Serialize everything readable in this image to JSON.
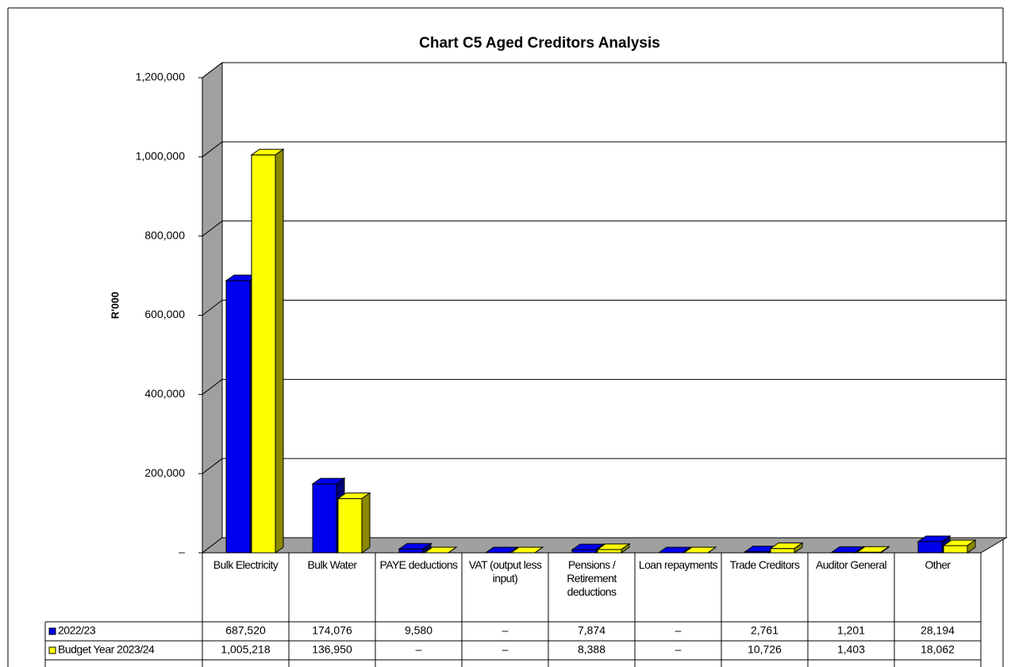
{
  "chart_data": {
    "type": "bar3d",
    "title": "Chart C5 Aged Creditors Analysis",
    "y_label": "R'000",
    "categories": [
      "Bulk Electricity",
      "Bulk Water",
      "PAYE deductions",
      "VAT (output less input)",
      "Pensions / Retirement deductions",
      "Loan repayments",
      "Trade Creditors",
      "Auditor General",
      "Other"
    ],
    "series": [
      {
        "name": "2022/23",
        "color": "#0000ee",
        "side": "#00007a",
        "values": [
          687520,
          174076,
          9580,
          0,
          7874,
          0,
          2761,
          1201,
          28194
        ],
        "value_labels": [
          "687,520",
          "174,076",
          "9,580",
          "–",
          "7,874",
          "–",
          "2,761",
          "1,201",
          "28,194"
        ]
      },
      {
        "name": "Budget Year 2023/24",
        "color": "#ffff00",
        "side": "#8a8a00",
        "values": [
          1005218,
          136950,
          0,
          0,
          8388,
          0,
          10726,
          1403,
          18062
        ],
        "value_labels": [
          "1,005,218",
          "136,950",
          "–",
          "–",
          "8,388",
          "–",
          "10,726",
          "1,403",
          "18,062"
        ]
      }
    ],
    "ylim": [
      0,
      1200000
    ],
    "yticks": [
      {
        "value": 0,
        "label": "–"
      },
      {
        "value": 200000,
        "label": "200,000"
      },
      {
        "value": 400000,
        "label": "400,000"
      },
      {
        "value": 600000,
        "label": "600,000"
      },
      {
        "value": 800000,
        "label": "800,000"
      },
      {
        "value": 1000000,
        "label": "1,000,000"
      },
      {
        "value": 1200000,
        "label": "1,200,000"
      }
    ],
    "grid": true
  }
}
